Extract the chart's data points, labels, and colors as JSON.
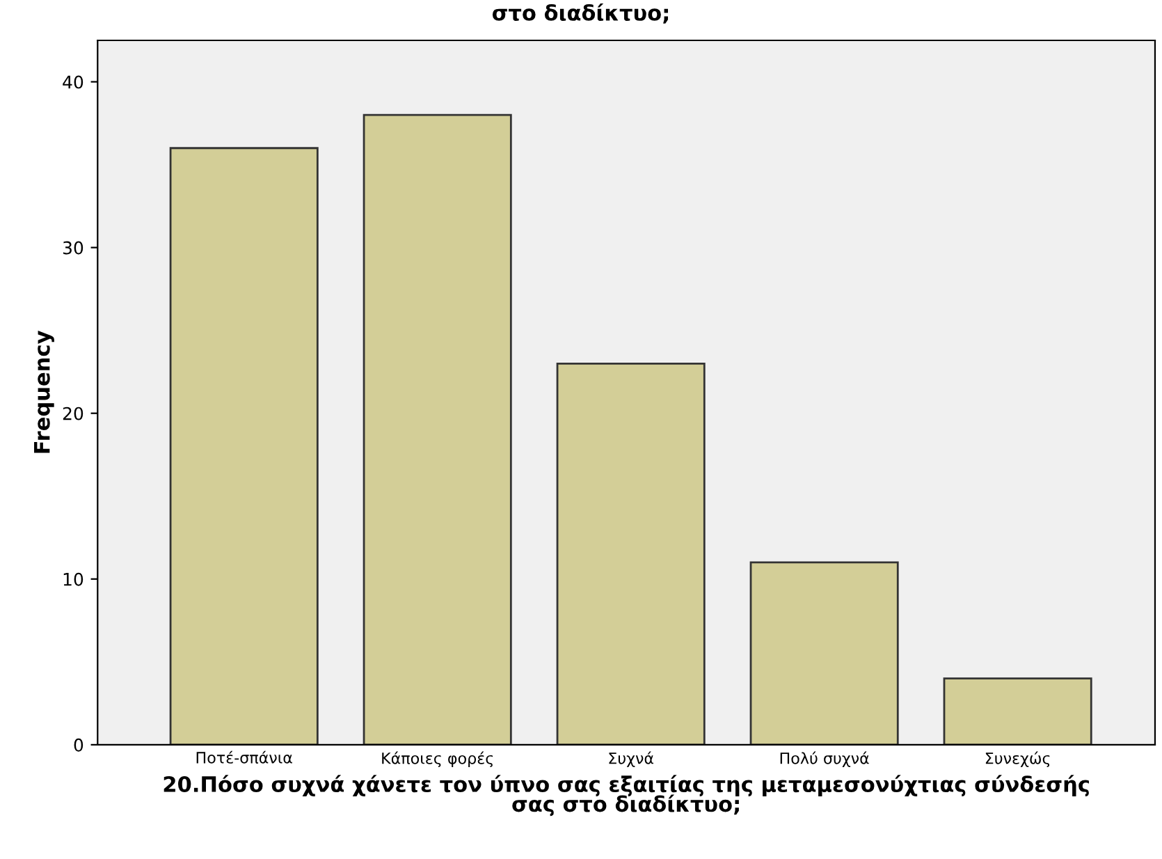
{
  "chart_data": {
    "type": "bar",
    "title": "στο διαδίκτυο;",
    "xlabel": "20.Πόσο συχνά χάνετε τον ύπνο σας εξαιτίας της μεταμεσονύχτιας σύνδεσής\nσας στο διαδίκτυο;",
    "ylabel": "Frequency",
    "categories": [
      "Ποτέ-σπάνια",
      "Κάποιες φορές",
      "Συχνά",
      "Πολύ συχνά",
      "Συνεχώς"
    ],
    "values": [
      36,
      38,
      23,
      11,
      4
    ],
    "color": "#d3ce97",
    "ylim": [
      0,
      42.5
    ],
    "yticks": [
      0,
      10,
      20,
      30,
      40
    ],
    "grid": false,
    "legend": false
  }
}
